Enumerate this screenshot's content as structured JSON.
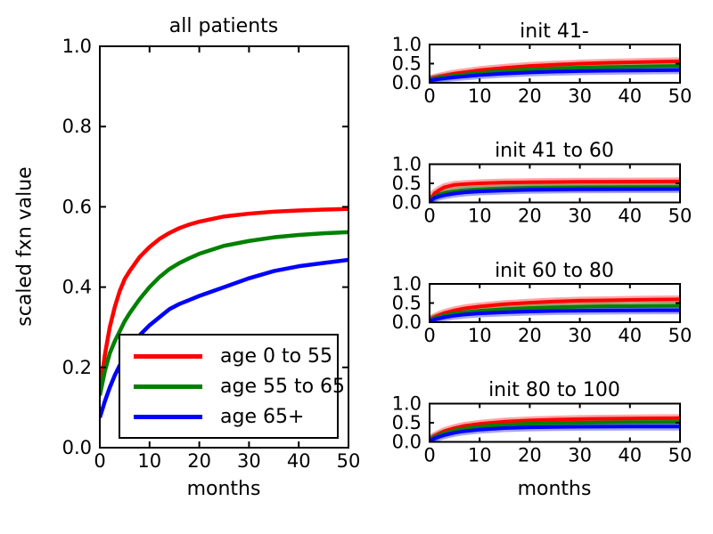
{
  "figure": {
    "background": "#ffffff",
    "text_color": "#000000",
    "accent_colors": {
      "red": "#ff0000",
      "green": "#008000",
      "blue": "#0000ff"
    }
  },
  "legend": {
    "position": "lower left of main chart"
  },
  "chart_data": [
    {
      "id": "main",
      "type": "line",
      "title": "all patients",
      "xlabel": "months",
      "ylabel": "scaled fxn value",
      "xlim": [
        0,
        50
      ],
      "ylim": [
        0,
        1
      ],
      "x_ticks": [
        0,
        10,
        20,
        30,
        40,
        50
      ],
      "x_tick_labels": [
        "0",
        "10",
        "20",
        "30",
        "40",
        "50"
      ],
      "y_ticks": [
        0.0,
        0.2,
        0.4,
        0.6,
        0.8,
        1.0
      ],
      "y_tick_labels": [
        "0.0",
        "0.2",
        "0.4",
        "0.6",
        "0.8",
        "1.0"
      ],
      "grid": false,
      "legend_position": "lower left",
      "x": [
        0,
        1,
        2,
        3,
        4,
        5,
        6,
        8,
        10,
        12,
        14,
        16,
        18,
        20,
        25,
        30,
        35,
        40,
        45,
        50
      ],
      "series": [
        {
          "name": "age 0 to 55",
          "color": "#ff0000",
          "values": [
            0.14,
            0.23,
            0.3,
            0.35,
            0.39,
            0.42,
            0.44,
            0.475,
            0.5,
            0.52,
            0.535,
            0.547,
            0.556,
            0.563,
            0.576,
            0.583,
            0.588,
            0.591,
            0.593,
            0.595
          ]
        },
        {
          "name": "age 55 to 65",
          "color": "#008000",
          "values": [
            0.13,
            0.19,
            0.235,
            0.265,
            0.29,
            0.315,
            0.335,
            0.37,
            0.4,
            0.425,
            0.445,
            0.46,
            0.472,
            0.483,
            0.503,
            0.515,
            0.524,
            0.53,
            0.534,
            0.537
          ]
        },
        {
          "name": "age 65+",
          "color": "#0000ff",
          "values": [
            0.075,
            0.115,
            0.15,
            0.18,
            0.205,
            0.225,
            0.245,
            0.28,
            0.305,
            0.325,
            0.345,
            0.358,
            0.368,
            0.378,
            0.4,
            0.422,
            0.44,
            0.452,
            0.46,
            0.468
          ]
        }
      ]
    },
    {
      "id": "init-41-minus",
      "type": "line",
      "title": "init 41-",
      "xlim": [
        0,
        50
      ],
      "ylim": [
        0,
        1
      ],
      "x_ticks": [
        0,
        10,
        20,
        30,
        40,
        50
      ],
      "x_tick_labels": [
        "0",
        "10",
        "20",
        "30",
        "40",
        "50"
      ],
      "y_ticks": [
        0.0,
        0.5,
        1.0
      ],
      "y_tick_labels": [
        "0.0",
        "0.5",
        "1.0"
      ],
      "grid": false,
      "x": [
        0,
        2,
        5,
        10,
        15,
        20,
        25,
        30,
        35,
        40,
        45,
        50
      ],
      "series": [
        {
          "name": "age 0 to 55",
          "color": "#ff0000",
          "values": [
            0.09,
            0.16,
            0.24,
            0.33,
            0.39,
            0.44,
            0.47,
            0.5,
            0.52,
            0.535,
            0.55,
            0.56
          ]
        },
        {
          "name": "age 55 to 65",
          "color": "#008000",
          "values": [
            0.08,
            0.13,
            0.19,
            0.26,
            0.31,
            0.35,
            0.375,
            0.395,
            0.41,
            0.42,
            0.43,
            0.44
          ]
        },
        {
          "name": "age 65+",
          "color": "#0000ff",
          "values": [
            0.06,
            0.1,
            0.145,
            0.2,
            0.24,
            0.27,
            0.29,
            0.305,
            0.315,
            0.32,
            0.325,
            0.33
          ]
        }
      ]
    },
    {
      "id": "init-41-to-60",
      "type": "line",
      "title": "init 41 to 60",
      "xlim": [
        0,
        50
      ],
      "ylim": [
        0,
        1
      ],
      "x_ticks": [
        0,
        10,
        20,
        30,
        40,
        50
      ],
      "x_tick_labels": [
        "0",
        "10",
        "20",
        "30",
        "40",
        "50"
      ],
      "y_ticks": [
        0.0,
        0.5,
        1.0
      ],
      "y_tick_labels": [
        "0.0",
        "0.5",
        "1.0"
      ],
      "grid": false,
      "x": [
        0,
        1,
        2,
        3,
        5,
        7,
        10,
        15,
        20,
        25,
        30,
        40,
        50
      ],
      "series": [
        {
          "name": "age 0 to 55",
          "color": "#ff0000",
          "values": [
            0.05,
            0.24,
            0.33,
            0.4,
            0.46,
            0.48,
            0.5,
            0.52,
            0.53,
            0.535,
            0.54,
            0.545,
            0.55
          ]
        },
        {
          "name": "age 55 to 65",
          "color": "#008000",
          "values": [
            0.04,
            0.15,
            0.21,
            0.25,
            0.29,
            0.32,
            0.34,
            0.365,
            0.38,
            0.385,
            0.39,
            0.395,
            0.4
          ]
        },
        {
          "name": "age 65+",
          "color": "#0000ff",
          "values": [
            0.03,
            0.12,
            0.16,
            0.19,
            0.235,
            0.265,
            0.29,
            0.315,
            0.33,
            0.34,
            0.345,
            0.35,
            0.352
          ]
        }
      ]
    },
    {
      "id": "init-60-to-80",
      "type": "line",
      "title": "init 60 to 80",
      "xlim": [
        0,
        50
      ],
      "ylim": [
        0,
        1
      ],
      "x_ticks": [
        0,
        10,
        20,
        30,
        40,
        50
      ],
      "x_tick_labels": [
        "0",
        "10",
        "20",
        "30",
        "40",
        "50"
      ],
      "y_ticks": [
        0.0,
        0.5,
        1.0
      ],
      "y_tick_labels": [
        "0.0",
        "0.5",
        "1.0"
      ],
      "grid": false,
      "x": [
        0,
        1,
        2,
        3,
        5,
        7,
        10,
        15,
        20,
        25,
        30,
        35,
        40,
        45,
        50
      ],
      "series": [
        {
          "name": "age 0 to 55",
          "color": "#ff0000",
          "values": [
            0.05,
            0.13,
            0.19,
            0.24,
            0.31,
            0.36,
            0.41,
            0.47,
            0.51,
            0.54,
            0.56,
            0.57,
            0.58,
            0.59,
            0.595
          ]
        },
        {
          "name": "age 55 to 65",
          "color": "#008000",
          "values": [
            0.04,
            0.1,
            0.14,
            0.18,
            0.23,
            0.26,
            0.3,
            0.34,
            0.37,
            0.39,
            0.405,
            0.415,
            0.42,
            0.425,
            0.43
          ]
        },
        {
          "name": "age 65+",
          "color": "#0000ff",
          "values": [
            0.03,
            0.07,
            0.1,
            0.13,
            0.17,
            0.2,
            0.23,
            0.26,
            0.28,
            0.295,
            0.3,
            0.305,
            0.308,
            0.31,
            0.31
          ]
        }
      ]
    },
    {
      "id": "init-80-to-100",
      "type": "line",
      "title": "init 80 to 100",
      "xlabel": "months",
      "xlim": [
        0,
        50
      ],
      "ylim": [
        0,
        1
      ],
      "x_ticks": [
        0,
        10,
        20,
        30,
        40,
        50
      ],
      "x_tick_labels": [
        "0",
        "10",
        "20",
        "30",
        "40",
        "50"
      ],
      "y_ticks": [
        0.0,
        0.5,
        1.0
      ],
      "y_tick_labels": [
        "0.0",
        "0.5",
        "1.0"
      ],
      "grid": false,
      "x": [
        0,
        1,
        2,
        3,
        5,
        7,
        10,
        15,
        20,
        25,
        30,
        35,
        40,
        45,
        50
      ],
      "series": [
        {
          "name": "age 0 to 55",
          "color": "#ff0000",
          "values": [
            0.05,
            0.15,
            0.22,
            0.28,
            0.36,
            0.42,
            0.47,
            0.53,
            0.56,
            0.58,
            0.595,
            0.605,
            0.61,
            0.615,
            0.62
          ]
        },
        {
          "name": "age 55 to 65",
          "color": "#008000",
          "values": [
            0.04,
            0.12,
            0.18,
            0.23,
            0.3,
            0.35,
            0.4,
            0.45,
            0.475,
            0.49,
            0.5,
            0.51,
            0.515,
            0.518,
            0.52
          ]
        },
        {
          "name": "age 65+",
          "color": "#0000ff",
          "values": [
            0.03,
            0.09,
            0.14,
            0.18,
            0.24,
            0.28,
            0.32,
            0.36,
            0.38,
            0.39,
            0.395,
            0.398,
            0.4,
            0.4,
            0.4
          ]
        }
      ]
    }
  ]
}
